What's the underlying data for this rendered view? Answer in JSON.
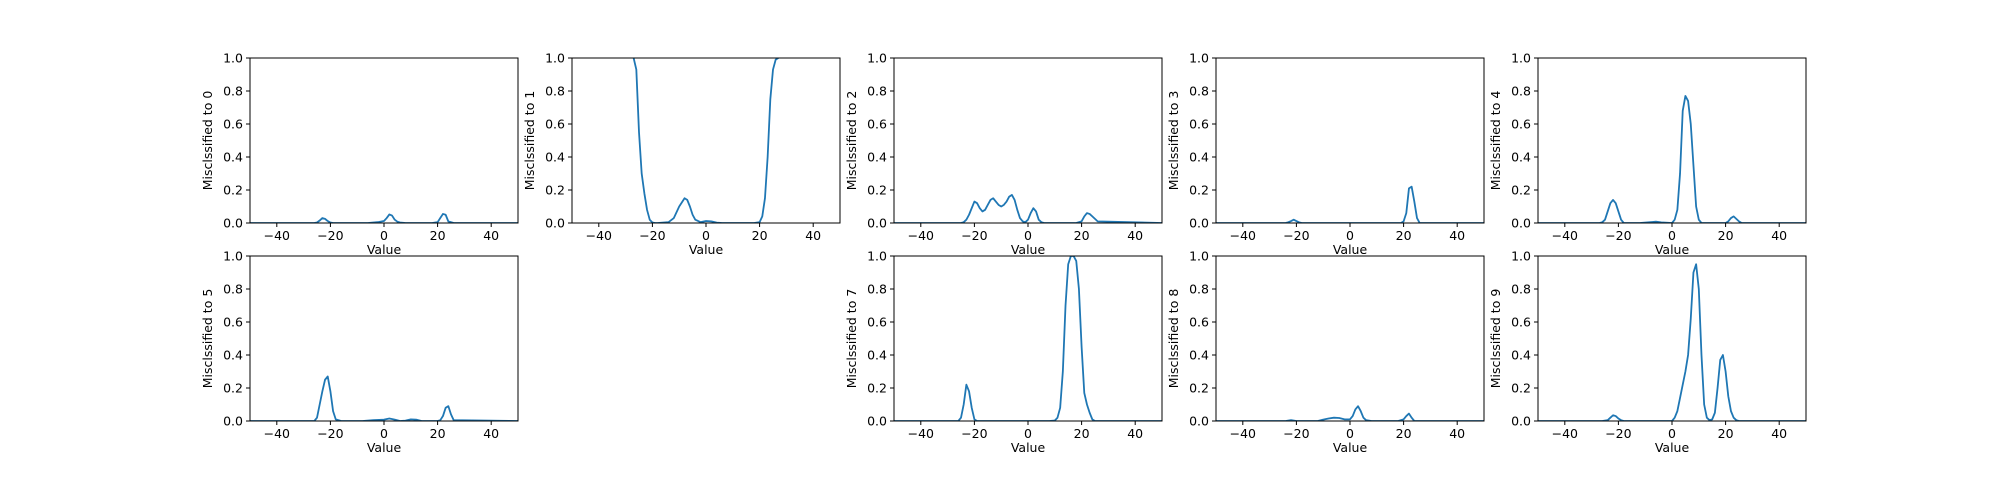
{
  "chart_data": [
    {
      "type": "line",
      "xlabel": "Value",
      "ylabel": "Misclssified to 0",
      "xlim": [
        -50,
        50
      ],
      "ylim": [
        0,
        1
      ],
      "grid": false,
      "color": "#1f77b4",
      "xticks": [
        -40,
        -20,
        0,
        20,
        40
      ],
      "yticks": [
        0.0,
        0.2,
        0.4,
        0.6,
        0.8,
        1.0
      ],
      "series": [
        {
          "x": [
            -50,
            -26,
            -25,
            -24,
            -23,
            -22,
            -21,
            -20,
            -19,
            -6,
            -4,
            -2,
            0,
            1,
            2,
            3,
            4,
            5,
            6,
            8,
            18,
            20,
            21,
            22,
            23,
            24,
            26,
            50
          ],
          "y": [
            0,
            0,
            0.003,
            0.015,
            0.03,
            0.025,
            0.012,
            0.003,
            0,
            0,
            0.003,
            0.006,
            0.012,
            0.03,
            0.052,
            0.045,
            0.02,
            0.008,
            0.003,
            0,
            0,
            0.005,
            0.03,
            0.055,
            0.05,
            0.01,
            0,
            0
          ]
        }
      ]
    },
    {
      "type": "line",
      "xlabel": "Value",
      "ylabel": "Misclssified to 1",
      "xlim": [
        -50,
        50
      ],
      "ylim": [
        0,
        1
      ],
      "grid": false,
      "color": "#1f77b4",
      "xticks": [
        -40,
        -20,
        0,
        20,
        40
      ],
      "yticks": [
        0.0,
        0.2,
        0.4,
        0.6,
        0.8,
        1.0
      ],
      "series": [
        {
          "x": [
            -27,
            -26,
            -25,
            -24,
            -23,
            -22,
            -21,
            -20,
            -19,
            -18,
            -14,
            -12,
            -10,
            -8,
            -7,
            -6,
            -5,
            -4,
            -2,
            0,
            2,
            4,
            6,
            18,
            20,
            21,
            22,
            23,
            24,
            25,
            26,
            27
          ],
          "y": [
            1.0,
            0.93,
            0.55,
            0.3,
            0.18,
            0.08,
            0.02,
            0.003,
            0,
            0,
            0.005,
            0.03,
            0.1,
            0.15,
            0.14,
            0.1,
            0.05,
            0.02,
            0.005,
            0.012,
            0.01,
            0.002,
            0,
            0,
            0.005,
            0.04,
            0.15,
            0.4,
            0.75,
            0.93,
            0.99,
            1.0
          ]
        }
      ]
    },
    {
      "type": "line",
      "xlabel": "Value",
      "ylabel": "Misclssified to 2",
      "xlim": [
        -50,
        50
      ],
      "ylim": [
        0,
        1
      ],
      "grid": false,
      "color": "#1f77b4",
      "xticks": [
        -40,
        -20,
        0,
        20,
        40
      ],
      "yticks": [
        0.0,
        0.2,
        0.4,
        0.6,
        0.8,
        1.0
      ],
      "series": [
        {
          "x": [
            -50,
            -25,
            -24,
            -23,
            -22,
            -21,
            -20,
            -19,
            -18,
            -17,
            -16,
            -15,
            -14,
            -13,
            -12,
            -11,
            -10,
            -9,
            -8,
            -7,
            -6,
            -5,
            -4,
            -3,
            -2,
            -1,
            0,
            1,
            2,
            3,
            4,
            5,
            6,
            18,
            20,
            21,
            22,
            23,
            24,
            26,
            50
          ],
          "y": [
            0,
            0,
            0.005,
            0.02,
            0.05,
            0.09,
            0.13,
            0.12,
            0.09,
            0.07,
            0.08,
            0.11,
            0.14,
            0.15,
            0.13,
            0.11,
            0.1,
            0.11,
            0.13,
            0.16,
            0.17,
            0.14,
            0.08,
            0.03,
            0.01,
            0.005,
            0.02,
            0.06,
            0.09,
            0.07,
            0.02,
            0.005,
            0,
            0,
            0.01,
            0.04,
            0.06,
            0.055,
            0.04,
            0.01,
            0
          ]
        }
      ]
    },
    {
      "type": "line",
      "xlabel": "Value",
      "ylabel": "Misclssified to 3",
      "xlim": [
        -50,
        50
      ],
      "ylim": [
        0,
        1
      ],
      "grid": false,
      "color": "#1f77b4",
      "xticks": [
        -40,
        -20,
        0,
        20,
        40
      ],
      "yticks": [
        0.0,
        0.2,
        0.4,
        0.6,
        0.8,
        1.0
      ],
      "series": [
        {
          "x": [
            -50,
            -24,
            -23,
            -22,
            -21,
            -20,
            -19,
            -18,
            19,
            20,
            21,
            22,
            23,
            24,
            25,
            26,
            50
          ],
          "y": [
            0,
            0,
            0.005,
            0.012,
            0.02,
            0.012,
            0.004,
            0,
            0,
            0.01,
            0.06,
            0.21,
            0.22,
            0.13,
            0.03,
            0,
            0
          ]
        }
      ]
    },
    {
      "type": "line",
      "xlabel": "Value",
      "ylabel": "Misclssified to 4",
      "xlim": [
        -50,
        50
      ],
      "ylim": [
        0,
        1
      ],
      "grid": false,
      "color": "#1f77b4",
      "xticks": [
        -40,
        -20,
        0,
        20,
        40
      ],
      "yticks": [
        0.0,
        0.2,
        0.4,
        0.6,
        0.8,
        1.0
      ],
      "series": [
        {
          "x": [
            -50,
            -27,
            -26,
            -25,
            -24,
            -23,
            -22,
            -21,
            -20,
            -19,
            -18,
            -12,
            -8,
            -6,
            -4,
            0,
            1,
            2,
            3,
            4,
            5,
            6,
            7,
            8,
            9,
            10,
            11,
            20,
            21,
            22,
            23,
            24,
            25,
            26,
            50
          ],
          "y": [
            0,
            0,
            0.005,
            0.02,
            0.07,
            0.12,
            0.14,
            0.12,
            0.07,
            0.02,
            0,
            0,
            0.005,
            0.008,
            0.004,
            0,
            0.02,
            0.08,
            0.3,
            0.68,
            0.77,
            0.74,
            0.6,
            0.35,
            0.1,
            0.02,
            0,
            0,
            0.01,
            0.03,
            0.04,
            0.025,
            0.01,
            0,
            0
          ]
        }
      ]
    },
    {
      "type": "line",
      "xlabel": "Value",
      "ylabel": "Misclssified to 5",
      "xlim": [
        -50,
        50
      ],
      "ylim": [
        0,
        1
      ],
      "grid": false,
      "color": "#1f77b4",
      "xticks": [
        -40,
        -20,
        0,
        20,
        40
      ],
      "yticks": [
        0.0,
        0.2,
        0.4,
        0.6,
        0.8,
        1.0
      ],
      "series": [
        {
          "x": [
            -50,
            -26,
            -25,
            -24,
            -23,
            -22,
            -21,
            -20,
            -19,
            -18,
            -16,
            -8,
            -4,
            0,
            2,
            4,
            6,
            8,
            10,
            12,
            14,
            20,
            21,
            22,
            23,
            24,
            25,
            26,
            50
          ],
          "y": [
            0,
            0,
            0.02,
            0.1,
            0.18,
            0.25,
            0.27,
            0.18,
            0.06,
            0.01,
            0,
            0,
            0.005,
            0.008,
            0.015,
            0.008,
            0,
            0.002,
            0.01,
            0.008,
            0,
            0,
            0.005,
            0.03,
            0.08,
            0.09,
            0.04,
            0.005,
            0
          ]
        }
      ]
    },
    {
      "type": "line",
      "xlabel": "Value",
      "ylabel": "Misclssified to 7",
      "xlim": [
        -50,
        50
      ],
      "ylim": [
        0,
        1
      ],
      "grid": false,
      "color": "#1f77b4",
      "xticks": [
        -40,
        -20,
        0,
        20,
        40
      ],
      "yticks": [
        0.0,
        0.2,
        0.4,
        0.6,
        0.8,
        1.0
      ],
      "series": [
        {
          "x": [
            -50,
            -26,
            -25,
            -24,
            -23,
            -22,
            -21,
            -20,
            -19,
            8,
            10,
            11,
            12,
            13,
            14,
            15,
            16,
            17,
            18,
            19,
            20,
            21,
            22,
            23,
            24,
            25,
            50
          ],
          "y": [
            0,
            0,
            0.02,
            0.1,
            0.22,
            0.18,
            0.08,
            0.01,
            0,
            0,
            0.003,
            0.02,
            0.08,
            0.3,
            0.7,
            0.95,
            1.0,
            1.0,
            0.97,
            0.8,
            0.45,
            0.17,
            0.1,
            0.05,
            0.01,
            0,
            0
          ]
        }
      ]
    },
    {
      "type": "line",
      "xlabel": "Value",
      "ylabel": "Misclssified to 8",
      "xlim": [
        -50,
        50
      ],
      "ylim": [
        0,
        1
      ],
      "grid": false,
      "color": "#1f77b4",
      "xticks": [
        -40,
        -20,
        0,
        20,
        40
      ],
      "yticks": [
        0.0,
        0.2,
        0.4,
        0.6,
        0.8,
        1.0
      ],
      "series": [
        {
          "x": [
            -50,
            -24,
            -22,
            -20,
            -12,
            -10,
            -8,
            -6,
            -4,
            -2,
            0,
            1,
            2,
            3,
            4,
            5,
            6,
            8,
            18,
            20,
            21,
            22,
            23,
            24,
            50
          ],
          "y": [
            0,
            0,
            0.005,
            0,
            0,
            0.008,
            0.015,
            0.02,
            0.018,
            0.01,
            0.01,
            0.03,
            0.07,
            0.09,
            0.06,
            0.02,
            0.005,
            0,
            0,
            0.01,
            0.03,
            0.045,
            0.02,
            0,
            0
          ]
        }
      ]
    },
    {
      "type": "line",
      "xlabel": "Value",
      "ylabel": "Misclssified to 9",
      "xlim": [
        -50,
        50
      ],
      "ylim": [
        0,
        1
      ],
      "grid": false,
      "color": "#1f77b4",
      "xticks": [
        -40,
        -20,
        0,
        20,
        40
      ],
      "yticks": [
        0.0,
        0.2,
        0.4,
        0.6,
        0.8,
        1.0
      ],
      "series": [
        {
          "x": [
            -50,
            -26,
            -24,
            -23,
            -22,
            -21,
            -20,
            -19,
            -18,
            0,
            1,
            2,
            3,
            4,
            5,
            6,
            7,
            8,
            9,
            10,
            11,
            12,
            13,
            14,
            15,
            16,
            17,
            18,
            19,
            20,
            21,
            22,
            23,
            24,
            25,
            50
          ],
          "y": [
            0,
            0,
            0.005,
            0.02,
            0.035,
            0.03,
            0.015,
            0.005,
            0,
            0,
            0.02,
            0.06,
            0.14,
            0.22,
            0.3,
            0.4,
            0.62,
            0.9,
            0.95,
            0.8,
            0.4,
            0.1,
            0.02,
            0.005,
            0.01,
            0.05,
            0.2,
            0.37,
            0.4,
            0.3,
            0.15,
            0.06,
            0.02,
            0.005,
            0,
            0
          ]
        }
      ]
    }
  ]
}
